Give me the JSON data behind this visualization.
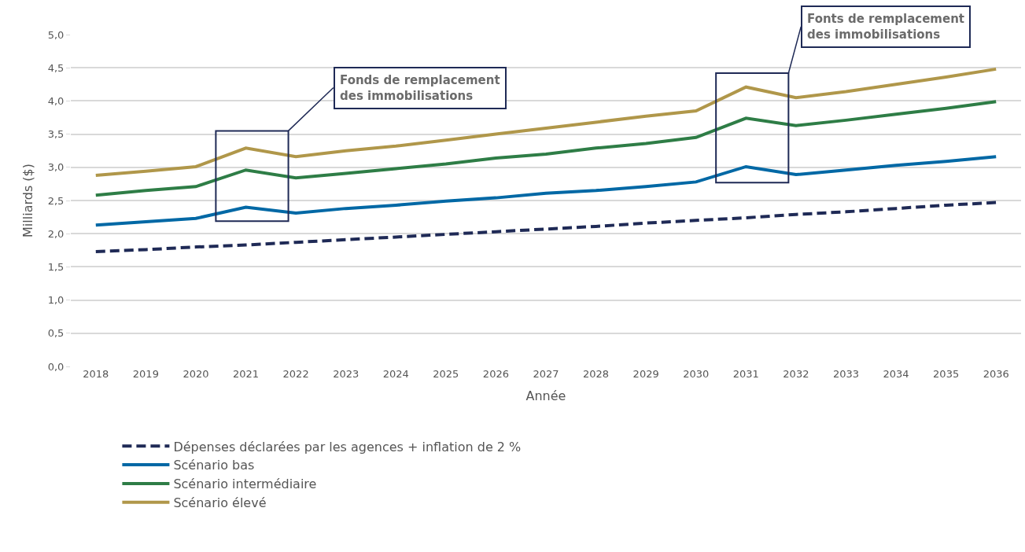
{
  "chart_data": {
    "type": "line",
    "xlabel": "Année",
    "ylabel": "Milliards ($)",
    "categories": [
      "2018",
      "2019",
      "2020",
      "2021",
      "2022",
      "2023",
      "2024",
      "2025",
      "2026",
      "2027",
      "2028",
      "2029",
      "2030",
      "2031",
      "2032",
      "2033",
      "2034",
      "2035",
      "2036"
    ],
    "series": [
      {
        "name": "Dépenses déclarées par les agences + inflation de 2 %",
        "color": "#1f2a56",
        "line_style": "dashed",
        "values": [
          1.73,
          1.76,
          1.8,
          1.83,
          1.87,
          1.91,
          1.95,
          1.99,
          2.03,
          2.07,
          2.11,
          2.16,
          2.2,
          2.24,
          2.29,
          2.33,
          2.38,
          2.43,
          2.47
        ]
      },
      {
        "name": "Scénario bas",
        "color": "#0068a5",
        "values": [
          2.13,
          2.18,
          2.23,
          2.4,
          2.31,
          2.38,
          2.43,
          2.49,
          2.54,
          2.61,
          2.65,
          2.71,
          2.78,
          3.01,
          2.89,
          2.96,
          3.03,
          3.09,
          3.16
        ]
      },
      {
        "name": "Scénario intermédiaire",
        "color": "#2e7d46",
        "values": [
          2.58,
          2.65,
          2.71,
          2.96,
          2.84,
          2.91,
          2.98,
          3.05,
          3.14,
          3.2,
          3.29,
          3.36,
          3.45,
          3.74,
          3.63,
          3.71,
          3.8,
          3.89,
          3.99
        ]
      },
      {
        "name": "Scénario élevé",
        "color": "#b0974a",
        "values": [
          2.88,
          2.94,
          3.01,
          3.29,
          3.16,
          3.25,
          3.32,
          3.41,
          3.5,
          3.59,
          3.68,
          3.77,
          3.85,
          4.21,
          4.05,
          4.14,
          4.25,
          4.36,
          4.48
        ]
      }
    ],
    "ylim": [
      0,
      5
    ],
    "yticks": [
      {
        "value": 0,
        "label": "0,0"
      },
      {
        "value": 0.5,
        "label": "0,5"
      },
      {
        "value": 1,
        "label": "1,0"
      },
      {
        "value": 1.5,
        "label": "1,5"
      },
      {
        "value": 2,
        "label": "2,0"
      },
      {
        "value": 2.5,
        "label": "2,5"
      },
      {
        "value": 3,
        "label": "3,0"
      },
      {
        "value": 3.5,
        "label": "3,5"
      },
      {
        "value": 4,
        "label": "4,0"
      },
      {
        "value": 4.5,
        "label": "4,5"
      },
      {
        "value": 5,
        "label": "5,0"
      }
    ],
    "grid": "y",
    "legend": "bottom left",
    "marker": "none",
    "annotations": [
      "Fonds de remplacement\ndes immobilisations",
      "Fonts de remplacement\ndes immobilisations"
    ]
  }
}
